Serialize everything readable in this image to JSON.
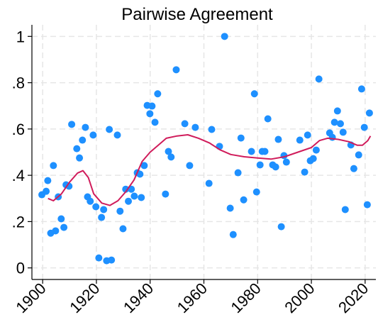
{
  "chart_data": {
    "type": "scatter",
    "title": "Pairwise Agreement",
    "xlim": [
      1896,
      2024
    ],
    "xticks": [
      1900,
      1920,
      1940,
      1960,
      1980,
      2000,
      2020
    ],
    "ylim": [
      -0.05,
      1.05
    ],
    "yticks": [
      0,
      {
        "value": 0.2,
        "label": ".2"
      },
      {
        "value": 0.4,
        "label": ".4"
      },
      {
        "value": 0.6,
        "label": ".6"
      },
      {
        "value": 0.8,
        "label": ".8"
      },
      1
    ],
    "grid": true,
    "series": [
      {
        "type": "scatter",
        "color": "#1e90ff",
        "x": [
          1899.7,
          1901.3,
          1901.9,
          1903,
          1904,
          1904.8,
          1905.8,
          1906.9,
          1907.9,
          1908.7,
          1909.8,
          1910.8,
          1912.7,
          1913.7,
          1914.8,
          1915.9,
          1916.7,
          1917.7,
          1918.8,
          1919.8,
          1920.9,
          1921.9,
          1922.7,
          1923.8,
          1924.8,
          1925.6,
          1927.8,
          1928.8,
          1929.9,
          1930.9,
          1931.9,
          1933,
          1934.1,
          1935.2,
          1936.2,
          1936.7,
          1937.8,
          1938.9,
          1939.9,
          1940.7,
          1941.8,
          1942.8,
          1945.7,
          1946.8,
          1947.8,
          1949.7,
          1952.9,
          1954.7,
          1956.8,
          1961.9,
          1962.9,
          1965.8,
          1967.7,
          1969.8,
          1970.9,
          1972.7,
          1973.8,
          1974.8,
          1977.7,
          1978.8,
          1979.6,
          1980.9,
          1981.7,
          1982.7,
          1983.8,
          1985.6,
          1986.7,
          1987.7,
          1988.8,
          1989.8,
          1990.7,
          1995.7,
          1997.5,
          1998.6,
          1999.6,
          2000.7,
          2001.8,
          2002.8,
          2006.8,
          2007.8,
          2008.6,
          2009.7,
          2010.8,
          2011.8,
          2012.6,
          2014.7,
          2015.8,
          2017.6,
          2018.7,
          2019.7,
          2020.8,
          2021.6
        ],
        "values": [
          0.316,
          0.331,
          0.377,
          0.15,
          0.442,
          0.16,
          0.307,
          0.212,
          0.175,
          0.359,
          0.353,
          0.62,
          0.515,
          0.475,
          0.552,
          0.607,
          0.307,
          0.288,
          0.574,
          0.264,
          0.043,
          0.218,
          0.252,
          0.031,
          0.598,
          0.034,
          0.574,
          0.245,
          0.169,
          0.34,
          0.288,
          0.34,
          0.31,
          0.411,
          0.405,
          0.304,
          0.442,
          0.702,
          0.666,
          0.699,
          0.629,
          0.752,
          0.319,
          0.503,
          0.479,
          0.856,
          0.623,
          0.442,
          0.607,
          0.365,
          0.598,
          0.525,
          1.0,
          0.258,
          0.144,
          0.411,
          0.561,
          0.294,
          0.503,
          0.752,
          0.328,
          0.445,
          0.503,
          0.503,
          0.644,
          0.445,
          0.436,
          0.555,
          0.178,
          0.485,
          0.457,
          0.552,
          0.414,
          0.574,
          0.463,
          0.472,
          0.509,
          0.816,
          0.583,
          0.564,
          0.629,
          0.678,
          0.623,
          0.586,
          0.252,
          0.531,
          0.429,
          0.488,
          0.773,
          0.607,
          0.273,
          0.669
        ]
      },
      {
        "type": "line",
        "color": "#d01c5b",
        "x": [
          1902,
          1904,
          1907,
          1910,
          1913,
          1915,
          1917,
          1919,
          1922,
          1925,
          1928,
          1931,
          1934,
          1937,
          1940,
          1943,
          1946,
          1950,
          1954,
          1958,
          1962,
          1966,
          1970,
          1975,
          1980,
          1985,
          1990,
          1995,
          2000,
          2003,
          2006,
          2010,
          2014,
          2017,
          2019,
          2021,
          2022
        ],
        "values": [
          0.3,
          0.29,
          0.32,
          0.37,
          0.41,
          0.42,
          0.39,
          0.32,
          0.28,
          0.27,
          0.29,
          0.33,
          0.38,
          0.46,
          0.5,
          0.53,
          0.56,
          0.57,
          0.575,
          0.56,
          0.54,
          0.51,
          0.49,
          0.48,
          0.475,
          0.47,
          0.48,
          0.5,
          0.52,
          0.55,
          0.56,
          0.555,
          0.545,
          0.53,
          0.53,
          0.55,
          0.57
        ]
      }
    ]
  }
}
